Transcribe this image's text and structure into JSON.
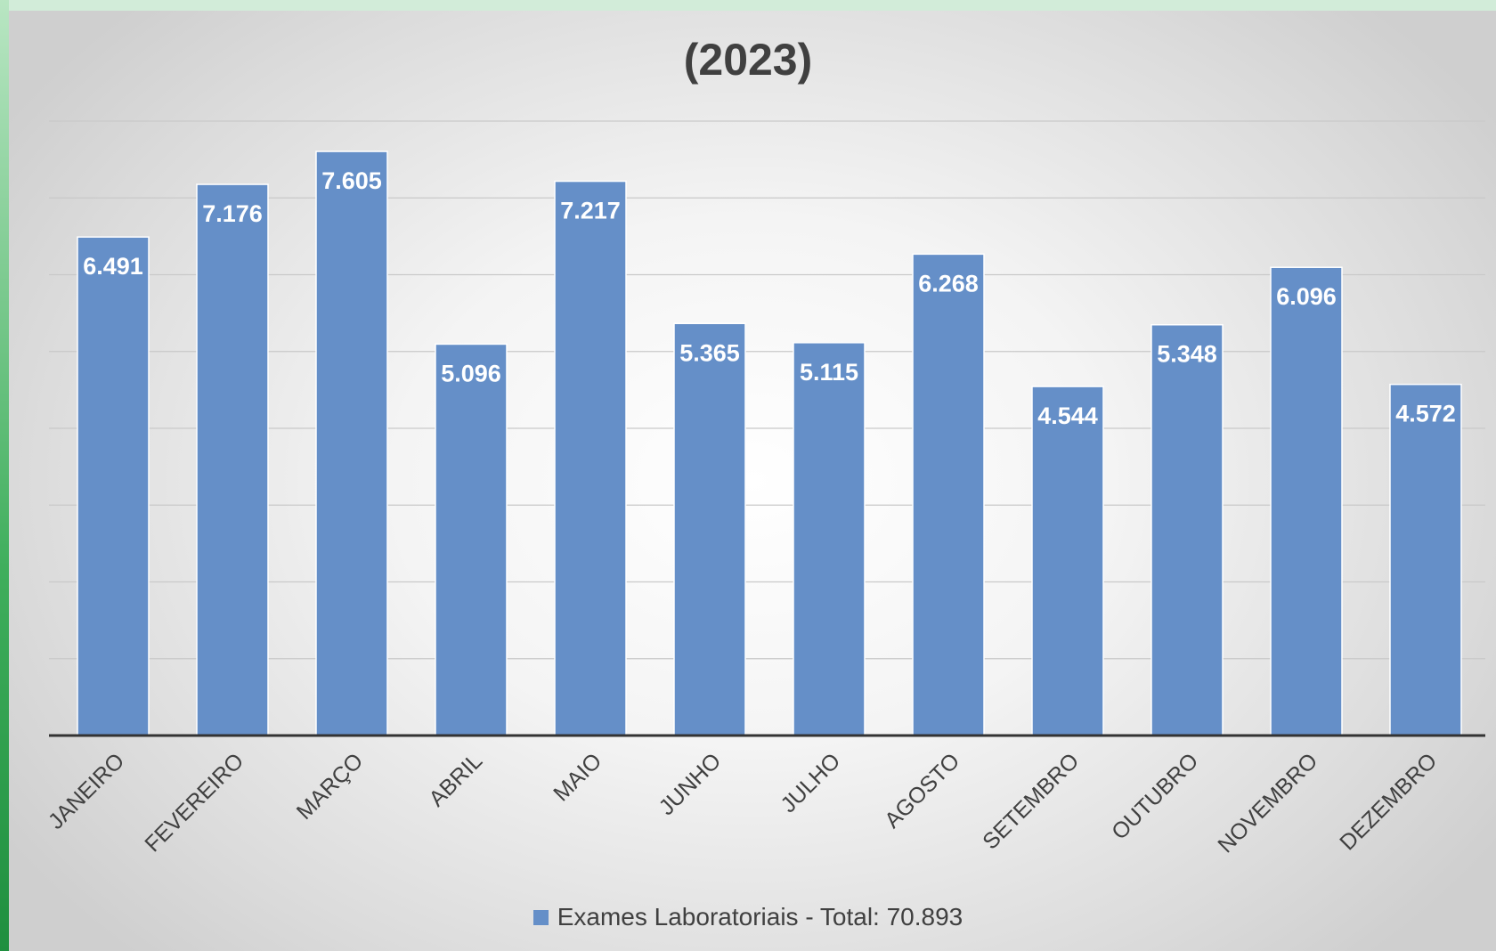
{
  "chart_data": {
    "type": "bar",
    "title": "(2023)",
    "categories": [
      "JANEIRO",
      "FEVEREIRO",
      "MARÇO",
      "ABRIL",
      "MAIO",
      "JUNHO",
      "JULHO",
      "AGOSTO",
      "SETEMBRO",
      "OUTUBRO",
      "NOVEMBRO",
      "DEZEMBRO"
    ],
    "series": [
      {
        "name": "Exames  Laboratoriais - Total: 70.893",
        "values": [
          6491,
          7176,
          7605,
          5096,
          7217,
          5365,
          5115,
          6268,
          4544,
          5348,
          6096,
          4572
        ],
        "labels": [
          "6.491",
          "7.176",
          "7.605",
          "5.096",
          "7.217",
          "5.365",
          "5.115",
          "6.268",
          "4.544",
          "5.348",
          "6.096",
          "4.572"
        ]
      }
    ],
    "ylim": [
      0,
      8000
    ],
    "grid": true,
    "legend_position": "bottom",
    "colors": {
      "bar": "#658fc8",
      "bar_edge": "#ffffff",
      "axis": "#333333",
      "grid": "#c9c9c9",
      "label": "#ffffff"
    }
  }
}
